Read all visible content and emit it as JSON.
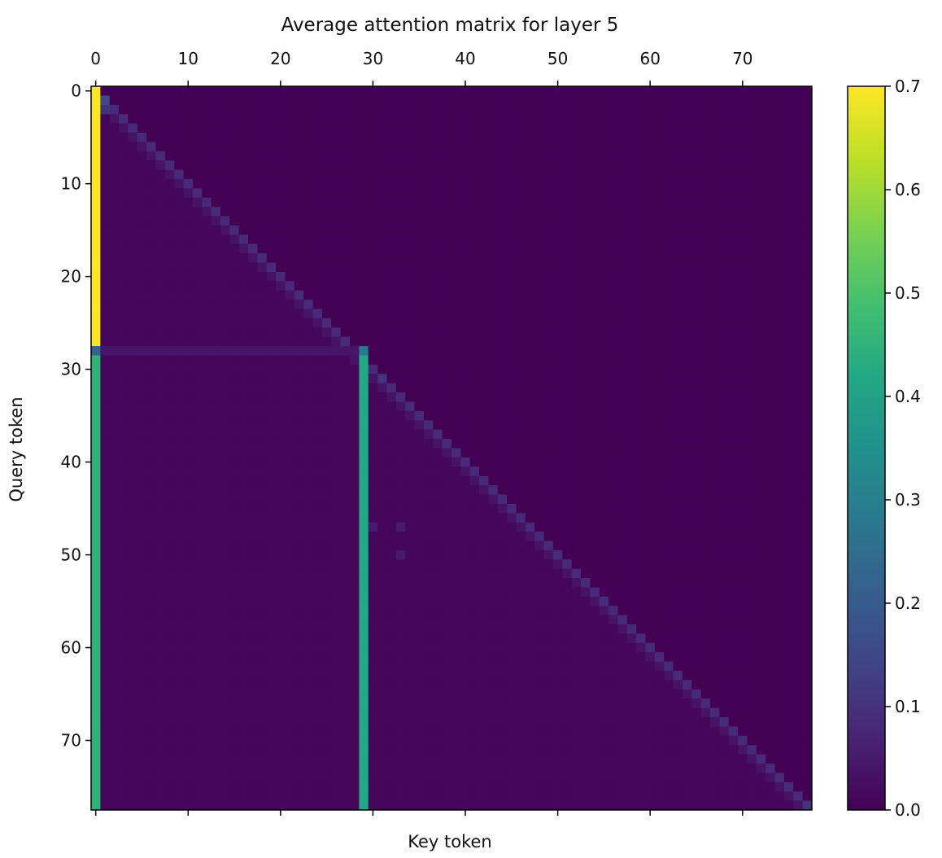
{
  "chart_data": {
    "type": "heatmap",
    "title": "Average attention matrix for layer 5",
    "xlabel": "Key token",
    "ylabel": "Query token",
    "size": 78,
    "x_ticks": [
      0,
      10,
      20,
      30,
      40,
      50,
      60,
      70
    ],
    "y_ticks": [
      0,
      10,
      20,
      30,
      40,
      50,
      60,
      70
    ],
    "colormap": "viridis",
    "vmin": 0.0,
    "vmax": 0.7,
    "colorbar_ticks": [
      "0.0",
      "0.1",
      "0.2",
      "0.3",
      "0.4",
      "0.5",
      "0.6",
      "0.7"
    ],
    "colorbar_position": "right",
    "upper_triangle_value": 0.0,
    "lower_triangle_value": 0.012,
    "subdiagonal_value": 0.035,
    "diagonal_value": 0.085,
    "column_overrides": [
      {
        "col": 0,
        "rows": [
          0,
          27
        ],
        "value": 0.7
      },
      {
        "col": 0,
        "rows": [
          28,
          28
        ],
        "value": 0.22
      },
      {
        "col": 0,
        "rows": [
          29,
          77
        ],
        "value": 0.45
      },
      {
        "col": 29,
        "rows": [
          28,
          28
        ],
        "value": 0.28
      },
      {
        "col": 29,
        "rows": [
          29,
          77
        ],
        "value": 0.42
      }
    ],
    "row_overrides": [
      {
        "row": 28,
        "cols": [
          1,
          27
        ],
        "value": 0.04
      }
    ],
    "cell_overrides": [
      {
        "row": 1,
        "col": 1,
        "value": 0.15
      },
      {
        "row": 2,
        "col": 1,
        "value": 0.1
      },
      {
        "row": 28,
        "col": 28,
        "value": 0.04
      },
      {
        "row": 31,
        "col": 31,
        "value": 0.1
      },
      {
        "row": 47,
        "col": 30,
        "value": 0.05
      },
      {
        "row": 47,
        "col": 33,
        "value": 0.05
      },
      {
        "row": 50,
        "col": 33,
        "value": 0.05
      },
      {
        "row": 77,
        "col": 77,
        "value": 0.1
      }
    ]
  }
}
